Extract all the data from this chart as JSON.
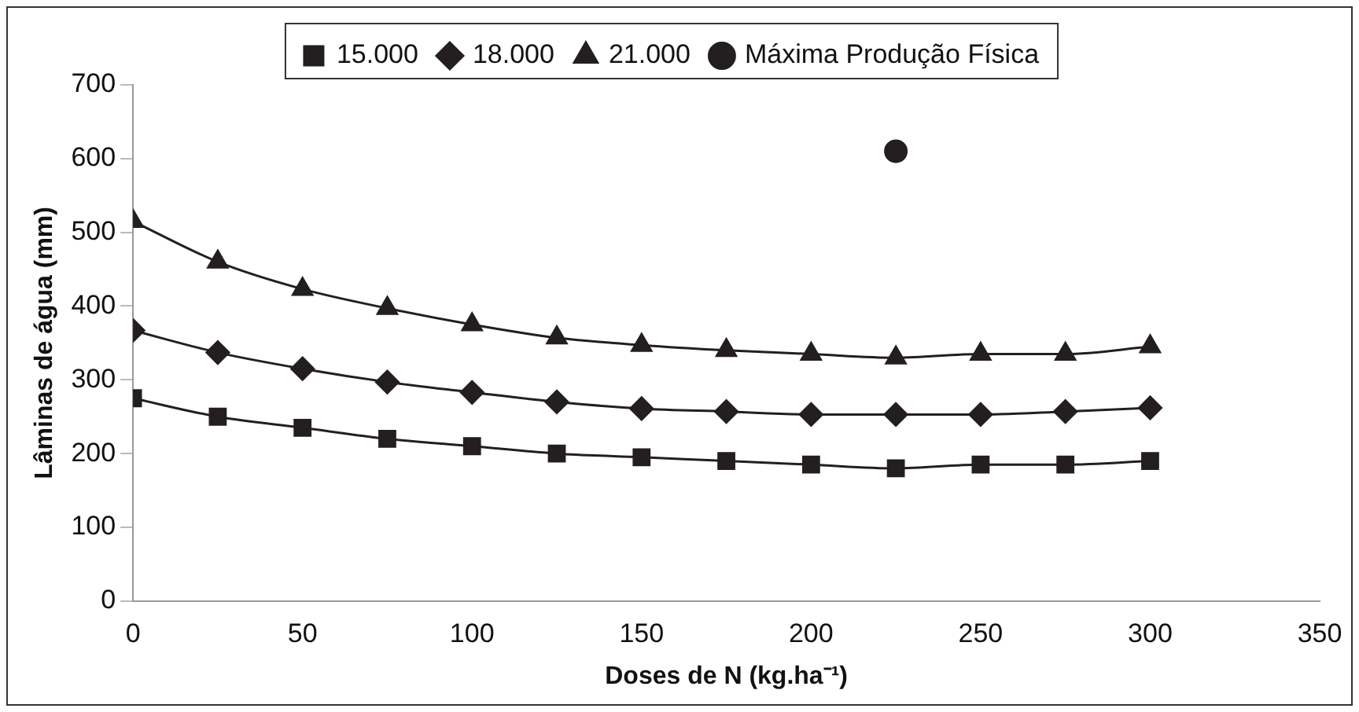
{
  "chart_data": {
    "type": "line",
    "xlabel": "Doses de N (kg.ha⁻¹)",
    "ylabel": "Lâminas de água (mm)",
    "x": [
      0,
      25,
      50,
      75,
      100,
      125,
      150,
      175,
      200,
      225,
      250,
      275,
      300
    ],
    "series": [
      {
        "name": "15.000",
        "color": "#231f20",
        "marker": "square",
        "values": [
          275,
          250,
          235,
          220,
          210,
          200,
          195,
          190,
          185,
          180,
          185,
          185,
          190
        ]
      },
      {
        "name": "18.000",
        "color": "#231f20",
        "marker": "diamond",
        "values": [
          367,
          337,
          315,
          297,
          283,
          270,
          261,
          257,
          253,
          253,
          253,
          257,
          262
        ]
      },
      {
        "name": "21.000",
        "color": "#231f20",
        "marker": "triangle",
        "values": [
          515,
          460,
          423,
          397,
          375,
          357,
          347,
          340,
          335,
          330,
          335,
          335,
          345
        ]
      },
      {
        "name": "Máxima Produção Física",
        "type": "scatter",
        "color": "#231f20",
        "marker": "circle",
        "x": [
          225
        ],
        "values": [
          610
        ]
      }
    ],
    "xlim": [
      0,
      350
    ],
    "xticks": [
      0,
      50,
      100,
      150,
      200,
      250,
      300,
      350
    ],
    "ylim": [
      0,
      700
    ],
    "yticks": [
      0,
      100,
      200,
      300,
      400,
      500,
      600,
      700
    ],
    "grid": false,
    "legend": "top"
  }
}
